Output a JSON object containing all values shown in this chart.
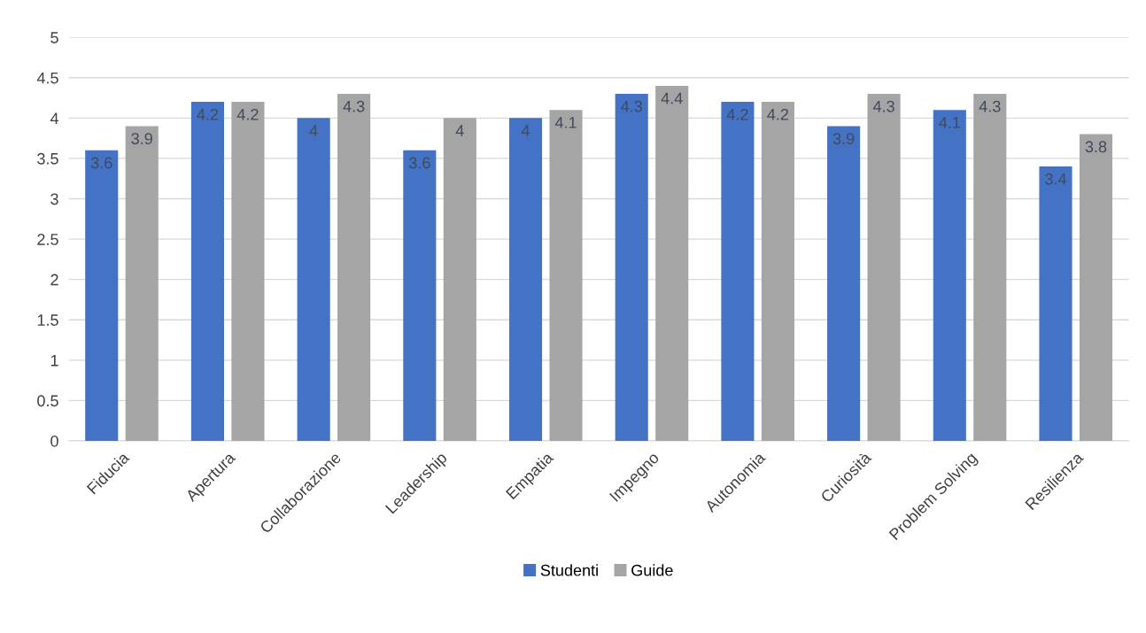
{
  "chart_data": {
    "type": "bar",
    "categories": [
      "Fiducia",
      "Apertura",
      "Collaborazione",
      "Leadership",
      "Empatia",
      "Impegno",
      "Autonomia",
      "Curiosità",
      "Problem Solving",
      "Resilienza"
    ],
    "series": [
      {
        "name": "Studenti",
        "color": "#4472c4",
        "values": [
          3.6,
          4.2,
          4,
          3.6,
          4,
          4.3,
          4.2,
          3.9,
          4.1,
          3.4
        ]
      },
      {
        "name": "Guide",
        "color": "#a5a5a5",
        "values": [
          3.9,
          4.2,
          4.3,
          4,
          4.1,
          4.4,
          4.2,
          4.3,
          4.3,
          3.8
        ]
      }
    ],
    "ylim": [
      0,
      5
    ],
    "yticks": [
      0,
      0.5,
      1,
      1.5,
      2,
      2.5,
      3,
      3.5,
      4,
      4.5,
      5
    ],
    "grid": "y",
    "legend": "bottom",
    "data_labels": true
  }
}
